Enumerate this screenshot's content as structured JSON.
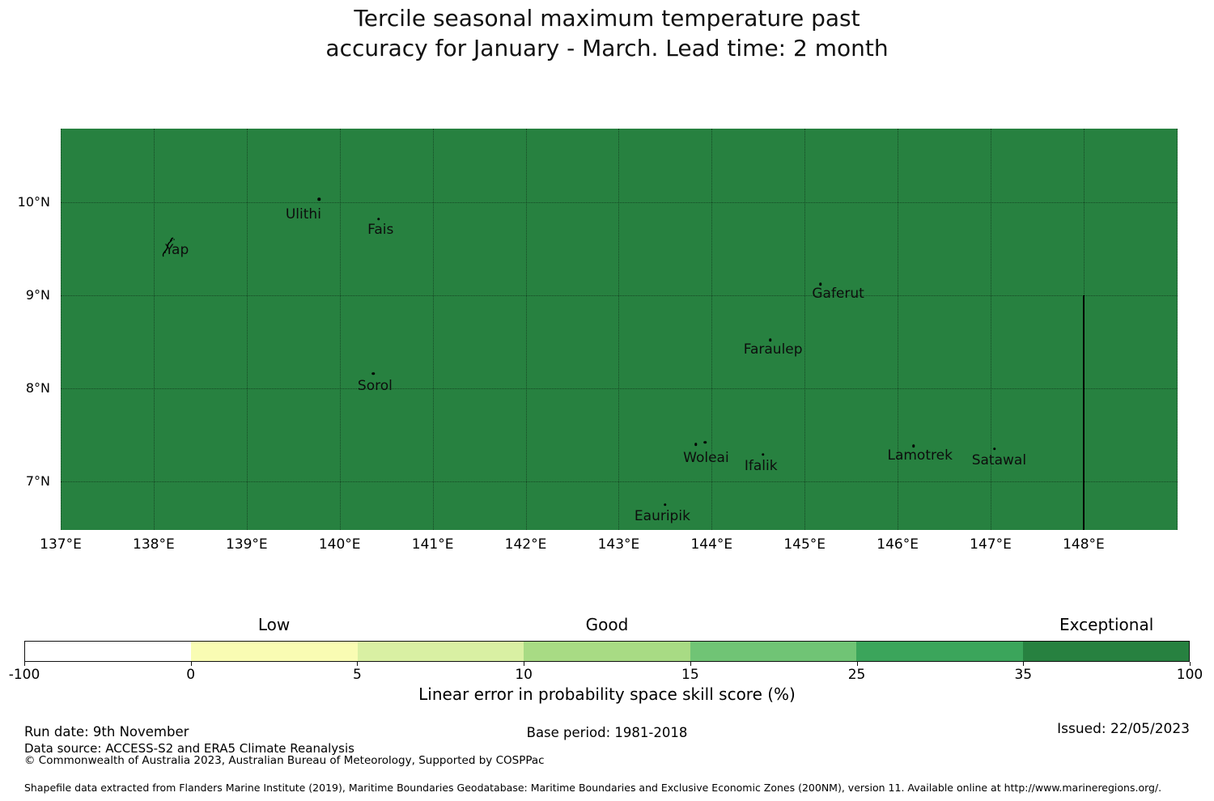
{
  "title": {
    "line1": "Tercile seasonal maximum temperature past",
    "line2": "accuracy for January - March. Lead time: 2 month"
  },
  "colors": {
    "map_fill": "#278140",
    "eez_line": "#000000",
    "gridline": "#1f1f1f"
  },
  "map": {
    "x_tick_labels": [
      "137°E",
      "138°E",
      "139°E",
      "140°E",
      "141°E",
      "142°E",
      "143°E",
      "144°E",
      "145°E",
      "146°E",
      "147°E",
      "148°E"
    ],
    "y_tick_labels": [
      "10°N",
      "9°N",
      "8°N",
      "7°N"
    ],
    "islands": [
      {
        "name": "Yap",
        "lon": 138.25,
        "lat": 9.49,
        "shape": true,
        "dots": []
      },
      {
        "name": "Ulithi",
        "lon": 139.61,
        "lat": 9.87,
        "dots": [
          {
            "lon": 139.78,
            "lat": 10.03
          }
        ]
      },
      {
        "name": "Fais",
        "lon": 140.44,
        "lat": 9.7,
        "dots": [
          {
            "lon": 140.42,
            "lat": 9.82
          }
        ]
      },
      {
        "name": "Sorol",
        "lon": 140.38,
        "lat": 8.03,
        "dots": [
          {
            "lon": 140.36,
            "lat": 8.16
          }
        ]
      },
      {
        "name": "Gaferut",
        "lon": 145.36,
        "lat": 9.02,
        "dots": [
          {
            "lon": 145.17,
            "lat": 9.12
          }
        ]
      },
      {
        "name": "Faraulep",
        "lon": 144.66,
        "lat": 8.42,
        "dots": [
          {
            "lon": 144.63,
            "lat": 8.52
          }
        ]
      },
      {
        "name": "Woleai",
        "lon": 143.94,
        "lat": 7.25,
        "dots": [
          {
            "lon": 143.83,
            "lat": 7.4
          },
          {
            "lon": 143.93,
            "lat": 7.42
          }
        ]
      },
      {
        "name": "Ifalik",
        "lon": 144.53,
        "lat": 7.17,
        "dots": [
          {
            "lon": 144.55,
            "lat": 7.29
          }
        ]
      },
      {
        "name": "Lamotrek",
        "lon": 146.24,
        "lat": 7.28,
        "dots": [
          {
            "lon": 146.17,
            "lat": 7.38
          }
        ]
      },
      {
        "name": "Satawal",
        "lon": 147.09,
        "lat": 7.23,
        "dots": [
          {
            "lon": 147.04,
            "lat": 7.35
          }
        ]
      },
      {
        "name": "Eauripik",
        "lon": 143.47,
        "lat": 6.63,
        "dots": [
          {
            "lon": 143.5,
            "lat": 6.75
          }
        ]
      }
    ],
    "eez_boundary": {
      "lon": 148.0,
      "lat_from": 9.0,
      "lat_to": 6.48
    }
  },
  "colorbar": {
    "tick_labels": [
      "-100",
      "0",
      "5",
      "10",
      "15",
      "25",
      "35",
      "100"
    ],
    "segment_colors": [
      "#ffffff",
      "#f9fcb3",
      "#d9f0a3",
      "#a8db84",
      "#70c475",
      "#3ba55b",
      "#278140"
    ],
    "categories": [
      {
        "label": "Low",
        "center_bin": 1
      },
      {
        "label": "Good",
        "center_bin": 3
      },
      {
        "label": "Exceptional",
        "center_bin": 6
      }
    ],
    "axis_label": "Linear error in probability space skill score (%)"
  },
  "footer": {
    "run_date": "Run date: 9th November",
    "base_period": "Base period: 1981-2018",
    "issued": "Issued: 22/05/2023",
    "data_source": "Data source: ACCESS-S2 and ERA5 Climate Reanalysis",
    "copyright": "© Commonwealth of Australia 2023, Australian Bureau of Meteorology, Supported by COSPPac",
    "shapefile_note": "Shapefile data extracted from Flanders Marine Institute (2019), Maritime Boundaries Geodatabase: Maritime Boundaries and Exclusive Economic Zones (200NM), version 11. Available online at http://www.marineregions.org/."
  },
  "chart_data": {
    "type": "heatmap",
    "title": "Tercile seasonal maximum temperature past accuracy for January - March. Lead time: 2 month",
    "x_ticks": [
      "137°E",
      "138°E",
      "139°E",
      "140°E",
      "141°E",
      "142°E",
      "143°E",
      "144°E",
      "145°E",
      "146°E",
      "147°E",
      "148°E"
    ],
    "y_ticks": [
      "10°N",
      "9°N",
      "8°N",
      "7°N"
    ],
    "lon_range": [
      137.0,
      149.01
    ],
    "lat_range": [
      6.48,
      10.79
    ],
    "grid": "dotted 1-degree graticule",
    "value_label": "Linear error in probability space skill score (%)",
    "colorbar_bounds": [
      -100,
      0,
      5,
      10,
      15,
      25,
      35,
      100
    ],
    "colorbar_colors": [
      "#ffffff",
      "#f9fcb3",
      "#d9f0a3",
      "#a8db84",
      "#70c475",
      "#3ba55b",
      "#278140"
    ],
    "category_labels": [
      {
        "label": "Low",
        "over_range": [
          0,
          5
        ]
      },
      {
        "label": "Good",
        "over_range": [
          10,
          15
        ]
      },
      {
        "label": "Exceptional",
        "over_range": [
          35,
          100
        ]
      }
    ],
    "field": "Entire mapped region shaded a single dark green, i.e. skill score in the 35–100 bin (Exceptional)",
    "eez_boundary_line": "solid black vertical line at 148°E from 9°N to bottom of map",
    "islands_annotated": [
      "Yap",
      "Ulithi",
      "Fais",
      "Sorol",
      "Gaferut",
      "Faraulep",
      "Woleai",
      "Ifalik",
      "Lamotrek",
      "Satawal",
      "Eauripik"
    ]
  }
}
